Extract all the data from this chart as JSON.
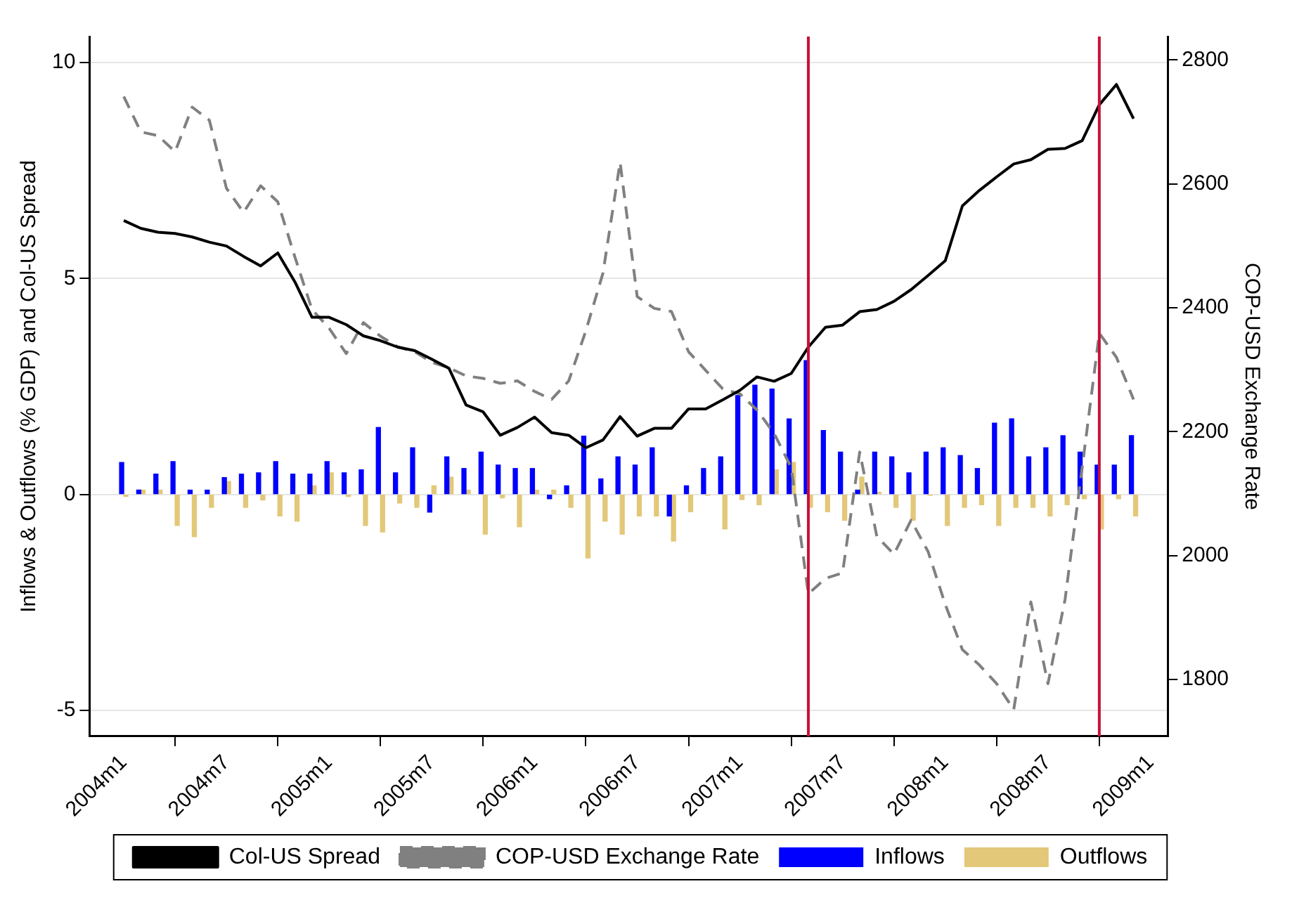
{
  "chart_data": {
    "type": "bar",
    "ylabel": "Inflows & Outflows (% GDP) and Col-US Spread",
    "y2label": "COP-USD Exchange Rate",
    "x": [
      "2004-01",
      "2004-02",
      "2004-03",
      "2004-04",
      "2004-05",
      "2004-06",
      "2004-07",
      "2004-08",
      "2004-09",
      "2004-10",
      "2004-11",
      "2004-12",
      "2005-01",
      "2005-02",
      "2005-03",
      "2005-04",
      "2005-05",
      "2005-06",
      "2005-07",
      "2005-08",
      "2005-09",
      "2005-10",
      "2005-11",
      "2005-12",
      "2006-01",
      "2006-02",
      "2006-03",
      "2006-04",
      "2006-05",
      "2006-06",
      "2006-07",
      "2006-08",
      "2006-09",
      "2006-10",
      "2006-11",
      "2006-12",
      "2007-01",
      "2007-02",
      "2007-03",
      "2007-04",
      "2007-05",
      "2007-06",
      "2007-07",
      "2007-08",
      "2007-09",
      "2007-10",
      "2007-11",
      "2007-12",
      "2008-01",
      "2008-02",
      "2008-03",
      "2008-04",
      "2008-05",
      "2008-06",
      "2008-07",
      "2008-08",
      "2008-09",
      "2008-10",
      "2008-11",
      "2008-12"
    ],
    "series": [
      {
        "name": "Inflows",
        "color": "#0000ff",
        "values": [
          0.74,
          0.1,
          0.47,
          0.76,
          0.1,
          0.1,
          0.39,
          0.47,
          0.5,
          0.76,
          0.47,
          0.47,
          0.76,
          0.5,
          0.57,
          1.55,
          0.5,
          1.08,
          -0.41,
          0.87,
          0.6,
          0.98,
          0.68,
          0.6,
          0.6,
          -0.1,
          0.2,
          1.35,
          0.36,
          0.87,
          0.68,
          1.08,
          -0.5,
          0.2,
          0.6,
          0.87,
          2.29,
          2.53,
          2.44,
          1.75,
          3.1,
          1.48,
          0.98,
          0.1,
          0.98,
          0.87,
          0.5,
          0.98,
          1.08,
          0.9,
          0.6,
          1.65,
          1.75,
          0.87,
          1.08,
          1.36,
          0.98,
          0.68,
          0.68,
          1.36
        ]
      },
      {
        "name": "Outflows",
        "color": "#e2c878",
        "values": [
          -0.05,
          0.1,
          0.1,
          -0.72,
          -0.98,
          -0.3,
          0.3,
          -0.3,
          -0.13,
          -0.5,
          -0.62,
          0.2,
          0.5,
          -0.05,
          -0.72,
          -0.87,
          -0.2,
          -0.3,
          0.2,
          0.4,
          0.1,
          -0.92,
          -0.08,
          -0.75,
          0.1,
          0.1,
          -0.3,
          -1.47,
          -0.62,
          -0.92,
          -0.5,
          -0.5,
          -1.08,
          -0.4,
          -0.02,
          -0.8,
          -0.12,
          -0.24,
          0.57,
          0.74,
          -0.3,
          -0.4,
          -0.6,
          0.4,
          0.05,
          -0.3,
          -0.6,
          -0.02,
          -0.72,
          -0.3,
          -0.24,
          -0.72,
          -0.3,
          -0.3,
          -0.5,
          -0.24,
          -0.1,
          -0.8,
          -0.1,
          -0.5
        ]
      },
      {
        "name": "Col-US Spread",
        "type": "line",
        "color": "#000000",
        "line_style": "solid",
        "values": [
          6.34,
          6.16,
          6.07,
          6.04,
          5.96,
          5.84,
          5.75,
          5.51,
          5.29,
          5.59,
          4.92,
          4.1,
          4.1,
          3.93,
          3.67,
          3.56,
          3.41,
          3.33,
          3.13,
          2.92,
          2.07,
          1.91,
          1.37,
          1.55,
          1.79,
          1.43,
          1.37,
          1.08,
          1.26,
          1.8,
          1.35,
          1.53,
          1.53,
          1.98,
          1.98,
          2.19,
          2.41,
          2.72,
          2.62,
          2.8,
          3.41,
          3.87,
          3.92,
          4.23,
          4.28,
          4.47,
          4.74,
          5.07,
          5.41,
          6.68,
          7.04,
          7.35,
          7.65,
          7.75,
          7.99,
          8.01,
          8.19,
          9.02,
          9.49,
          8.7
        ]
      },
      {
        "name": "COP-USD Exchange Rate",
        "type": "line",
        "axis": "y2",
        "color": "#808080",
        "line_style": "dashed",
        "values": [
          2741,
          2684,
          2678,
          2652,
          2724,
          2703,
          2593,
          2554,
          2597,
          2571,
          2482,
          2397,
          2367,
          2326,
          2376,
          2354,
          2337,
          2329,
          2312,
          2303,
          2290,
          2286,
          2278,
          2282,
          2265,
          2252,
          2282,
          2363,
          2456,
          2635,
          2418,
          2399,
          2394,
          2329,
          2299,
          2269,
          2261,
          2235,
          2197,
          2142,
          1938,
          1963,
          1972,
          2167,
          2031,
          2002,
          2057,
          2006,
          1921,
          1848,
          1823,
          1793,
          1751,
          1925,
          1793,
          1929,
          2142,
          2359,
          2320,
          2252
        ]
      }
    ],
    "xlim": [
      "2003-11",
      "2009-02"
    ],
    "xticks": [
      {
        "value": "2004-01",
        "label": "2004m1"
      },
      {
        "value": "2004-07",
        "label": "2004m7"
      },
      {
        "value": "2005-01",
        "label": "2005m1"
      },
      {
        "value": "2005-07",
        "label": "2005m7"
      },
      {
        "value": "2006-01",
        "label": "2006m1"
      },
      {
        "value": "2006-07",
        "label": "2006m7"
      },
      {
        "value": "2007-01",
        "label": "2007m1"
      },
      {
        "value": "2007-07",
        "label": "2007m7"
      },
      {
        "value": "2008-01",
        "label": "2008m1"
      },
      {
        "value": "2008-07",
        "label": "2008m7"
      },
      {
        "value": "2009-01",
        "label": "2009m1"
      }
    ],
    "ylim": [
      -5.6,
      10.6
    ],
    "yticks": [
      -5,
      0,
      5,
      10
    ],
    "y2lim": [
      1708,
      2838
    ],
    "y2ticks": [
      1800,
      2000,
      2200,
      2400,
      2600,
      2800
    ],
    "ref_lines": [
      {
        "axis": "x",
        "value": "2007-05",
        "color": "#c8103c"
      },
      {
        "axis": "x",
        "value": "2008-10",
        "color": "#c8103c"
      }
    ],
    "grid": "y",
    "legend": "bottom",
    "marker": "none"
  }
}
